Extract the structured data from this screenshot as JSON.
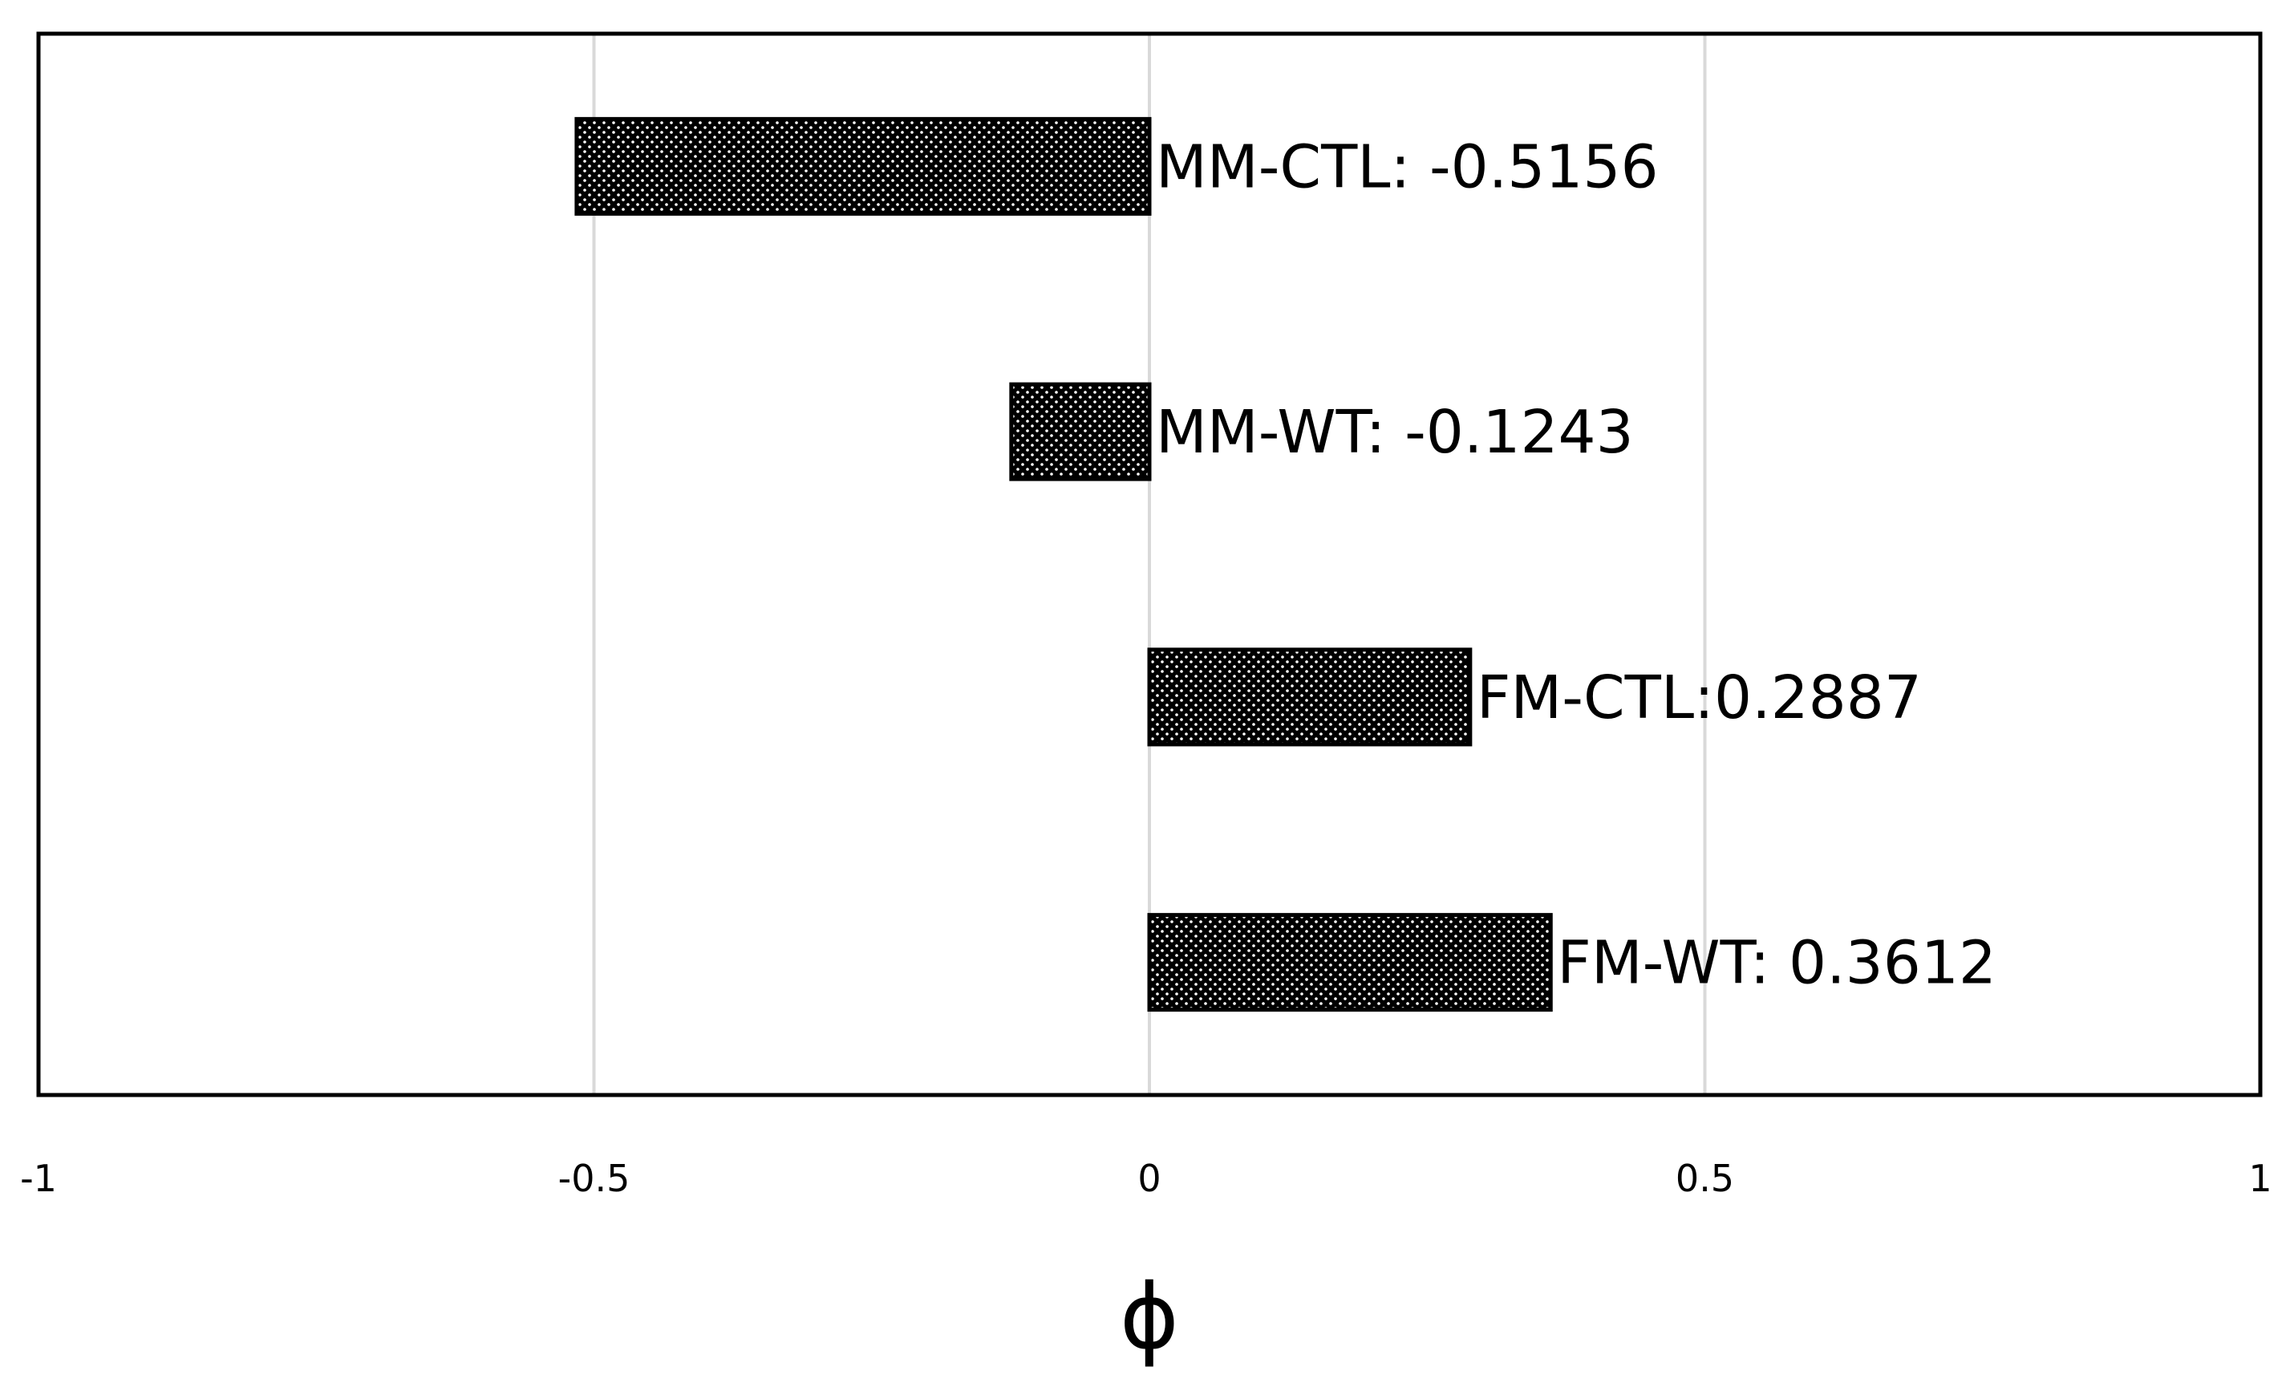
{
  "chart_data": {
    "type": "bar",
    "orientation": "horizontal",
    "title": "",
    "xlabel": "ϕ",
    "ylabel": "",
    "xlim": [
      -1,
      1
    ],
    "xticks": [
      -1,
      -0.5,
      0,
      0.5,
      1
    ],
    "xtick_labels": [
      "-1",
      "-0.5",
      "0",
      "0.5",
      "1"
    ],
    "grid": "vertical",
    "legend": "none",
    "categories": [
      "MM-CTL",
      "MM-WT",
      "FM-CTL",
      "FM-WT"
    ],
    "values": [
      -0.5156,
      -0.1243,
      0.2887,
      0.3612
    ],
    "data_labels": [
      "MM-CTL: -0.5156",
      "MM-WT: -0.1243",
      "FM-CTL:0.2887",
      "FM-WT: 0.3612"
    ],
    "colors": {
      "bar_fill": "#000000",
      "bar_dots": "#ffffff",
      "grid": "#d9d9d9",
      "frame": "#000000"
    }
  }
}
